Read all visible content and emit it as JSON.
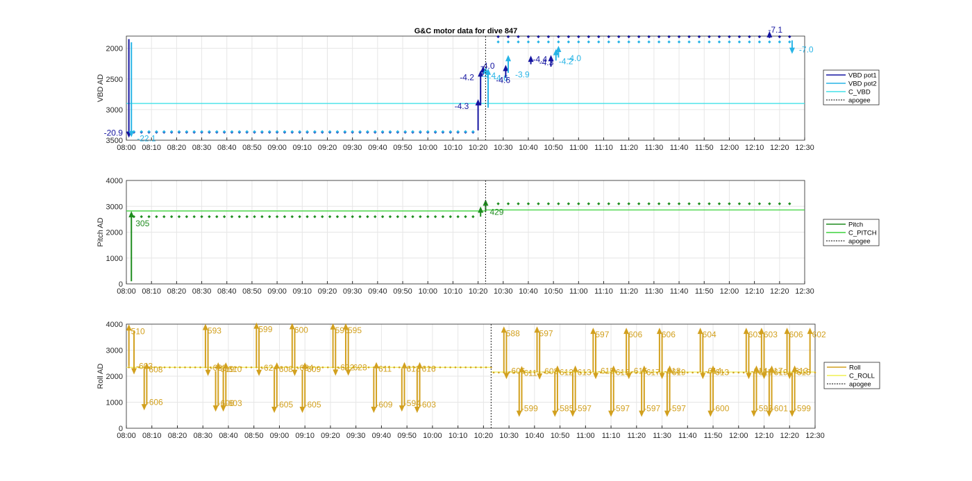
{
  "figure": {
    "title": "G&C motor data for dive 847"
  },
  "colors": {
    "pot1": "#1414a0",
    "pot2": "#27b4e6",
    "c_vbd": "#40e0e8",
    "pitch": "#1e8c1e",
    "c_pitch": "#3cd23c",
    "roll": "#d2a01e",
    "c_roll": "#f0f050",
    "apogee": "#333333",
    "grid": "#e6e6e6",
    "axis": "#262626"
  },
  "x_ticks": [
    "08:00",
    "08:10",
    "08:20",
    "08:30",
    "08:40",
    "08:50",
    "09:00",
    "09:10",
    "09:20",
    "09:30",
    "09:40",
    "09:50",
    "10:00",
    "10:10",
    "10:20",
    "10:30",
    "10:40",
    "10:50",
    "11:00",
    "11:10",
    "11:20",
    "11:30",
    "11:40",
    "11:50",
    "12:00",
    "12:10",
    "12:20",
    "12:30"
  ],
  "chart_data": [
    {
      "type": "scatter",
      "ylabel": "VBD AD",
      "xlim": [
        "08:00",
        "12:30"
      ],
      "ylim": [
        1800,
        3500
      ],
      "y_reversed": true,
      "y_ticks": [
        2000,
        2500,
        3000,
        3500
      ],
      "legend": [
        {
          "label": "VBD pot1",
          "key": "pot1",
          "dashed": false
        },
        {
          "label": "VBD pot2",
          "key": "pot2",
          "dashed": false
        },
        {
          "label": "C_VBD",
          "key": "c_vbd",
          "dashed": false
        },
        {
          "label": "apogee",
          "key": "apogee",
          "dashed": true
        }
      ],
      "apogee_time": "10:23",
      "command_line": {
        "key": "c_vbd",
        "value": 2900
      },
      "series": [
        {
          "name": "VBD pot1",
          "key": "pot1",
          "y_early": 3370,
          "y_late": 1810
        },
        {
          "name": "VBD pot2",
          "key": "pot2",
          "y_early": 3360,
          "y_late": 1895
        }
      ],
      "moves": [
        {
          "t": "08:01",
          "from": 1850,
          "to": 3370,
          "key": "pot1",
          "label": "-20.9",
          "dx": -36,
          "dy": 5
        },
        {
          "t": "08:02",
          "from": 1900,
          "to": 3360,
          "key": "pot2",
          "label": "-22.1",
          "dx": 8,
          "dy": 14
        },
        {
          "t": "10:20",
          "from": 3340,
          "to": 2920,
          "key": "pot1",
          "label": "-4.3",
          "dx": -34,
          "dy": 6
        },
        {
          "t": "10:21",
          "from": 2930,
          "to": 2450,
          "key": "pot1",
          "label": "-4.2",
          "dx": -30,
          "dy": 6
        },
        {
          "t": "10:22",
          "from": 2430,
          "to": 2380,
          "key": "pot1",
          "label": "-4.0",
          "dx": -4,
          "dy": -4
        },
        {
          "t": "10:24",
          "from": 2970,
          "to": 2420,
          "key": "pot2",
          "label": "-4.6",
          "dx": 8,
          "dy": 10
        },
        {
          "t": "10:23",
          "from": 2420,
          "to": 2400,
          "key": "pot2",
          "label": "-4.4",
          "dx": -6,
          "dy": 8
        },
        {
          "t": "10:31",
          "from": 2480,
          "to": 2360,
          "key": "pot1",
          "label": "-4.6",
          "dx": -14,
          "dy": 18
        },
        {
          "t": "10:32",
          "from": 2400,
          "to": 2200,
          "key": "pot2",
          "label": "-3.9",
          "dx": 10,
          "dy": 24
        },
        {
          "t": "10:41",
          "from": 2260,
          "to": 2210,
          "key": "pot1",
          "label": "-4.3",
          "dx": 12,
          "dy": 6
        },
        {
          "t": "10:49",
          "from": 2300,
          "to": 2200,
          "key": "pot1",
          "label": "-4.4",
          "dx": -26,
          "dy": 2
        },
        {
          "t": "10:51",
          "from": 2200,
          "to": 2100,
          "key": "pot2",
          "label": "-4.2",
          "dx": 4,
          "dy": 14
        },
        {
          "t": "10:52",
          "from": 2150,
          "to": 2050,
          "key": "pot2",
          "label": "-4.0",
          "dx": 12,
          "dy": 14
        },
        {
          "t": "12:16",
          "from": 1830,
          "to": 1810,
          "key": "pot1",
          "label": "-7.1",
          "dx": -2,
          "dy": -6
        },
        {
          "t": "12:25",
          "from": 1870,
          "to": 2000,
          "key": "pot2",
          "label": "-7.0",
          "dx": 10,
          "dy": 6
        }
      ]
    },
    {
      "type": "scatter",
      "ylabel": "Pitch AD",
      "xlim": [
        "08:00",
        "12:30"
      ],
      "ylim": [
        0,
        4000
      ],
      "y_ticks": [
        0,
        1000,
        2000,
        3000,
        4000
      ],
      "legend": [
        {
          "label": "Pitch",
          "key": "pitch",
          "dashed": false
        },
        {
          "label": "C_PITCH",
          "key": "c_pitch",
          "dashed": false
        },
        {
          "label": "apogee",
          "key": "apogee",
          "dashed": true
        }
      ],
      "apogee_time": "10:23",
      "command_segments": [
        {
          "from": "08:00",
          "to": "10:23",
          "value": 2820
        },
        {
          "from": "10:23",
          "to": "12:30",
          "value": 2860
        }
      ],
      "series": [
        {
          "name": "Pitch",
          "key": "pitch",
          "y_early": 2600,
          "y_late": 3100
        }
      ],
      "moves": [
        {
          "t": "08:02",
          "from": 100,
          "to": 2600,
          "key": "pitch",
          "label": "305",
          "dx": 6,
          "dy": 14
        },
        {
          "t": "10:21",
          "from": 2600,
          "to": 2780,
          "key": "pitch",
          "label": "",
          "dx": 0,
          "dy": 0
        },
        {
          "t": "10:23",
          "from": 2800,
          "to": 3050,
          "key": "pitch",
          "label": "429",
          "dx": 6,
          "dy": 14
        }
      ]
    },
    {
      "type": "scatter",
      "ylabel": "Roll AD",
      "xlim": [
        "08:00",
        "12:30"
      ],
      "ylim": [
        0,
        4000
      ],
      "y_ticks": [
        0,
        1000,
        2000,
        3000,
        4000
      ],
      "legend": [
        {
          "label": "Roll",
          "key": "roll",
          "dashed": false
        },
        {
          "label": "C_ROLL",
          "key": "c_roll",
          "dashed": false
        },
        {
          "label": "apogee",
          "key": "apogee",
          "dashed": true
        }
      ],
      "apogee_time": "10:23",
      "command_segments": [
        {
          "from": "08:00",
          "to": "10:23",
          "value": 2340
        },
        {
          "from": "10:23",
          "to": "12:30",
          "value": 2160
        }
      ],
      "base_segments": [
        {
          "from": "08:00",
          "to": "10:23",
          "value": 2340
        },
        {
          "from": "10:23",
          "to": "12:30",
          "value": 2140
        }
      ],
      "moves": [
        {
          "t": "08:01",
          "from": 2380,
          "to": 3780,
          "label": "510"
        },
        {
          "t": "08:03",
          "from": 3760,
          "to": 2280,
          "label": "-603"
        },
        {
          "t": "08:07",
          "from": 2300,
          "to": 900,
          "label": "-606"
        },
        {
          "t": "08:08",
          "from": 900,
          "to": 2310,
          "label": "608"
        },
        {
          "t": "08:31",
          "from": 2330,
          "to": 3800,
          "label": "593"
        },
        {
          "t": "08:32",
          "from": 3780,
          "to": 2220,
          "label": "-623"
        },
        {
          "t": "08:35",
          "from": 2200,
          "to": 850,
          "label": "-606"
        },
        {
          "t": "08:36",
          "from": 850,
          "to": 2320,
          "label": "619"
        },
        {
          "t": "08:38",
          "from": 2330,
          "to": 850,
          "label": "-603"
        },
        {
          "t": "08:39",
          "from": 850,
          "to": 2320,
          "label": "610"
        },
        {
          "t": "08:51",
          "from": 2330,
          "to": 3850,
          "label": "599"
        },
        {
          "t": "08:52",
          "from": 3830,
          "to": 2220,
          "label": "-624"
        },
        {
          "t": "08:58",
          "from": 2260,
          "to": 800,
          "label": "-605"
        },
        {
          "t": "08:59",
          "from": 800,
          "to": 2320,
          "label": "608"
        },
        {
          "t": "09:05",
          "from": 2330,
          "to": 3830,
          "label": "600"
        },
        {
          "t": "09:06",
          "from": 3810,
          "to": 2220,
          "label": "-624"
        },
        {
          "t": "09:09",
          "from": 2240,
          "to": 800,
          "label": "-605"
        },
        {
          "t": "09:10",
          "from": 800,
          "to": 2320,
          "label": "609"
        },
        {
          "t": "09:21",
          "from": 2330,
          "to": 3820,
          "label": "596"
        },
        {
          "t": "09:22",
          "from": 3800,
          "to": 2230,
          "label": "-622"
        },
        {
          "t": "09:26",
          "from": 2230,
          "to": 3820,
          "label": "595"
        },
        {
          "t": "09:27",
          "from": 3800,
          "to": 2230,
          "label": "-623"
        },
        {
          "t": "09:37",
          "from": 2300,
          "to": 800,
          "label": "-609"
        },
        {
          "t": "09:38",
          "from": 800,
          "to": 2330,
          "label": "611"
        },
        {
          "t": "09:48",
          "from": 2300,
          "to": 850,
          "label": "-594"
        },
        {
          "t": "09:49",
          "from": 850,
          "to": 2330,
          "label": "613"
        },
        {
          "t": "09:54",
          "from": 2300,
          "to": 800,
          "label": "-603"
        },
        {
          "t": "09:55",
          "from": 800,
          "to": 2330,
          "label": "616"
        },
        {
          "t": "10:28",
          "from": 2150,
          "to": 3700,
          "label": "588"
        },
        {
          "t": "10:29",
          "from": 3680,
          "to": 2100,
          "label": "-606"
        },
        {
          "t": "10:34",
          "from": 2150,
          "to": 650,
          "label": "-599"
        },
        {
          "t": "10:35",
          "from": 650,
          "to": 2180,
          "label": "611"
        },
        {
          "t": "10:41",
          "from": 2150,
          "to": 3700,
          "label": "597"
        },
        {
          "t": "10:42",
          "from": 3680,
          "to": 2080,
          "label": "-608"
        },
        {
          "t": "10:48",
          "from": 2150,
          "to": 650,
          "label": "-585"
        },
        {
          "t": "10:49",
          "from": 650,
          "to": 2200,
          "label": "612"
        },
        {
          "t": "10:55",
          "from": 2150,
          "to": 650,
          "label": "-597"
        },
        {
          "t": "10:56",
          "from": 650,
          "to": 2200,
          "label": "613"
        },
        {
          "t": "11:03",
          "from": 2150,
          "to": 3650,
          "label": "597"
        },
        {
          "t": "11:04",
          "from": 3630,
          "to": 2100,
          "label": "-615"
        },
        {
          "t": "11:10",
          "from": 2150,
          "to": 650,
          "label": "-597"
        },
        {
          "t": "11:11",
          "from": 650,
          "to": 2200,
          "label": "615"
        },
        {
          "t": "11:16",
          "from": 2150,
          "to": 3650,
          "label": "606"
        },
        {
          "t": "11:17",
          "from": 3630,
          "to": 2100,
          "label": "-615"
        },
        {
          "t": "11:22",
          "from": 2150,
          "to": 650,
          "label": "-597"
        },
        {
          "t": "11:23",
          "from": 650,
          "to": 2200,
          "label": "617"
        },
        {
          "t": "11:29",
          "from": 2150,
          "to": 3650,
          "label": "606"
        },
        {
          "t": "11:30",
          "from": 3630,
          "to": 2100,
          "label": "-618"
        },
        {
          "t": "11:32",
          "from": 2150,
          "to": 650,
          "label": "-597"
        },
        {
          "t": "11:33",
          "from": 650,
          "to": 2200,
          "label": "619"
        },
        {
          "t": "11:45",
          "from": 2150,
          "to": 3650,
          "label": "604"
        },
        {
          "t": "11:46",
          "from": 3630,
          "to": 2100,
          "label": "-614"
        },
        {
          "t": "11:49",
          "from": 2150,
          "to": 650,
          "label": "-600"
        },
        {
          "t": "11:50",
          "from": 650,
          "to": 2200,
          "label": "613"
        },
        {
          "t": "12:03",
          "from": 2150,
          "to": 3650,
          "label": "603"
        },
        {
          "t": "12:04",
          "from": 3630,
          "to": 2100,
          "label": "-614"
        },
        {
          "t": "12:06",
          "from": 2150,
          "to": 650,
          "label": "-597"
        },
        {
          "t": "12:07",
          "from": 650,
          "to": 2200,
          "label": "615"
        },
        {
          "t": "12:09",
          "from": 2150,
          "to": 3650,
          "label": "603"
        },
        {
          "t": "12:10",
          "from": 3630,
          "to": 2100,
          "label": "-617"
        },
        {
          "t": "12:12",
          "from": 2150,
          "to": 650,
          "label": "-601"
        },
        {
          "t": "12:13",
          "from": 650,
          "to": 2200,
          "label": "619"
        },
        {
          "t": "12:19",
          "from": 2150,
          "to": 3650,
          "label": "606"
        },
        {
          "t": "12:20",
          "from": 3630,
          "to": 2100,
          "label": "-613"
        },
        {
          "t": "12:21",
          "from": 2150,
          "to": 650,
          "label": "-599"
        },
        {
          "t": "12:22",
          "from": 650,
          "to": 2200,
          "label": "615"
        },
        {
          "t": "12:28",
          "from": 2150,
          "to": 3650,
          "label": "602"
        }
      ]
    }
  ]
}
